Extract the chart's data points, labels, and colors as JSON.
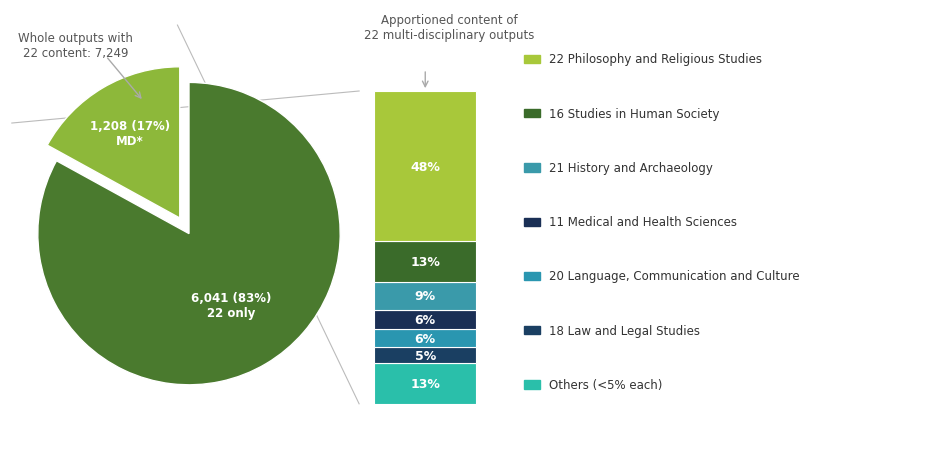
{
  "pie_labels": [
    "6,041 (83%)\n22 only",
    "1,208 (17%)\nMD*"
  ],
  "pie_values": [
    83,
    17
  ],
  "pie_colors": [
    "#4a7a2e",
    "#8db83a"
  ],
  "pie_explode": [
    0,
    0.12
  ],
  "bar_percentages": [
    48,
    13,
    9,
    6,
    6,
    5,
    13
  ],
  "bar_colors": [
    "#a8c83a",
    "#3a6b2a",
    "#3a9aaa",
    "#1a2f55",
    "#2a96b0",
    "#1a3f62",
    "#2abfaa"
  ],
  "bar_labels": [
    "48%",
    "13%",
    "9%",
    "6%",
    "6%",
    "5%",
    "13%"
  ],
  "legend_labels": [
    "22 Philosophy and Religious Studies",
    "16 Studies in Human Society",
    "21 History and Archaeology",
    "11 Medical and Health Sciences",
    "20 Language, Communication and Culture",
    "18 Law and Legal Studies",
    "Others (<5% each)"
  ],
  "legend_colors": [
    "#a8c83a",
    "#3a6b2a",
    "#3a9aaa",
    "#1a2f55",
    "#2a96b0",
    "#1a3f62",
    "#2abfaa"
  ],
  "annotation_pie": "Whole outputs with\n22 content: 7,249",
  "annotation_bar": "Apportioned content of\n22 multi-disciplinary outputs",
  "background_color": "#ffffff"
}
